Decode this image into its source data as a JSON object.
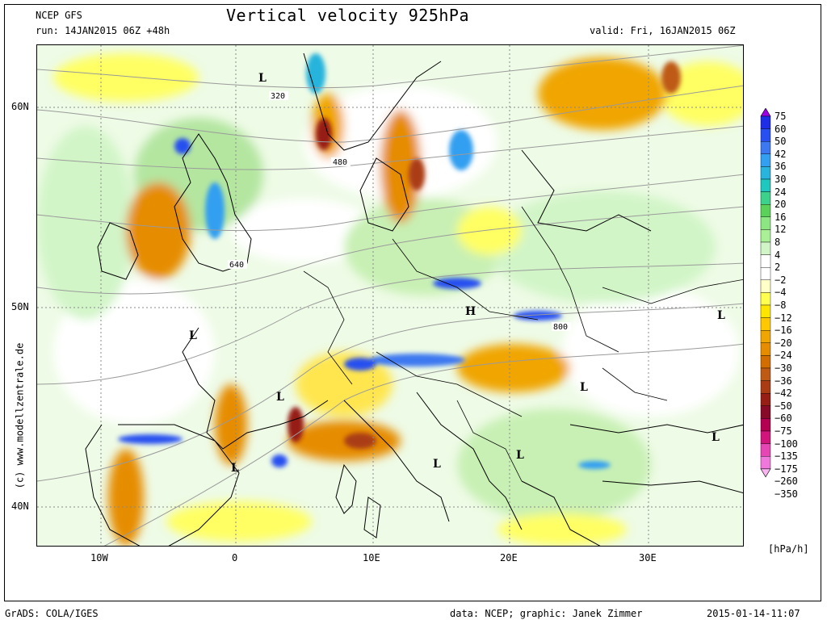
{
  "header": {
    "model": "NCEP GFS",
    "run": "run: 14JAN2015 06Z +48h",
    "title": "Vertical velocity 925hPa",
    "valid": "valid: Fri, 16JAN2015 06Z"
  },
  "footer": {
    "left": "GrADS: COLA/IGES",
    "center": "data: NCEP; graphic: Janek Zimmer",
    "right": "2015-01-14-11:07"
  },
  "watermark": "(c) www.modellzentrale.de",
  "map": {
    "lat_labels": [
      "60N",
      "50N",
      "40N"
    ],
    "lon_labels": [
      "10W",
      "0",
      "10E",
      "20E",
      "30E"
    ],
    "contours": [
      "320",
      "480",
      "640",
      "800"
    ],
    "pressure_centers": [
      "L",
      "L",
      "L",
      "L",
      "L",
      "L",
      "L",
      "L",
      "L",
      "H"
    ]
  },
  "legend": {
    "unit": "[hPa/h]",
    "levels": [
      "75",
      "60",
      "50",
      "42",
      "36",
      "30",
      "24",
      "20",
      "16",
      "12",
      "8",
      "4",
      "2",
      "−2",
      "−4",
      "−8",
      "−12",
      "−16",
      "−20",
      "−24",
      "−30",
      "−36",
      "−42",
      "−50",
      "−60",
      "−75",
      "−100",
      "−135",
      "−175",
      "−260",
      "−350"
    ],
    "colors": [
      "#9b00e6",
      "#1e2ee6",
      "#2850f0",
      "#3c78f0",
      "#329ff0",
      "#28b4dc",
      "#1ec8be",
      "#3cd28c",
      "#5ad25a",
      "#8ce682",
      "#aaf096",
      "#d2f5c8",
      "#ffffff",
      "#ffffff",
      "#ffffc8",
      "#ffff50",
      "#ffe600",
      "#ffc800",
      "#f0a500",
      "#e68c00",
      "#d26e00",
      "#be5a14",
      "#aa3c14",
      "#961e14",
      "#870a28",
      "#b40050",
      "#d2147d",
      "#e646b4",
      "#f078dc",
      "#fab4f0"
    ]
  }
}
